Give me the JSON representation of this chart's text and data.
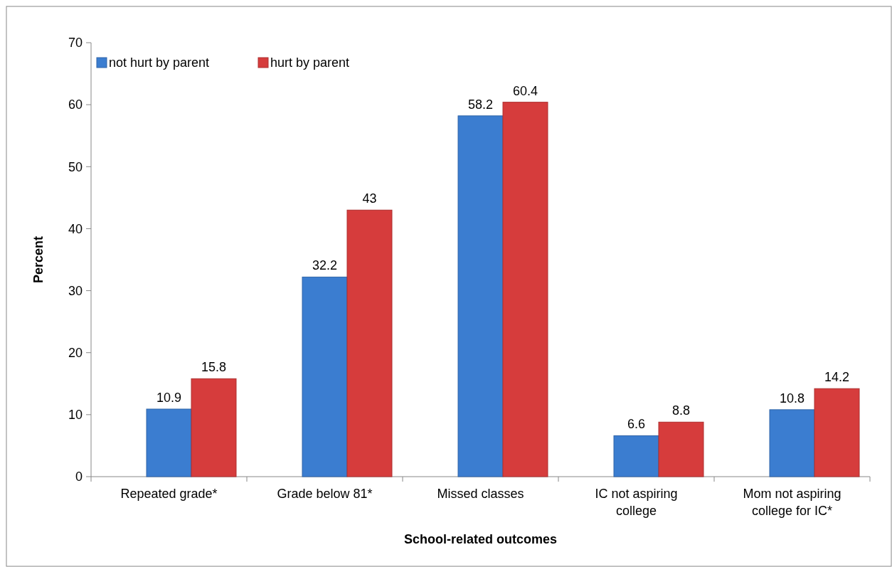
{
  "chart_data": {
    "type": "bar",
    "xlabel": "School-related outcomes",
    "ylabel": "Percent",
    "categories": [
      "Repeated grade*",
      "Grade below 81*",
      "Missed classes",
      "IC not aspiring college",
      "Mom not aspiring college for IC*"
    ],
    "series": [
      {
        "name": "not hurt by parent",
        "color": "#3b7dd0",
        "values": [
          10.9,
          32.2,
          58.2,
          6.6,
          10.8
        ]
      },
      {
        "name": "hurt by parent",
        "color": "#d63c3c",
        "values": [
          15.8,
          43,
          60.4,
          8.8,
          14.2
        ]
      }
    ],
    "ylim": [
      0,
      70
    ],
    "yticks": [
      0,
      10,
      20,
      30,
      40,
      50,
      60,
      70
    ],
    "data_labels": true,
    "grid": false,
    "legend": "top left"
  }
}
